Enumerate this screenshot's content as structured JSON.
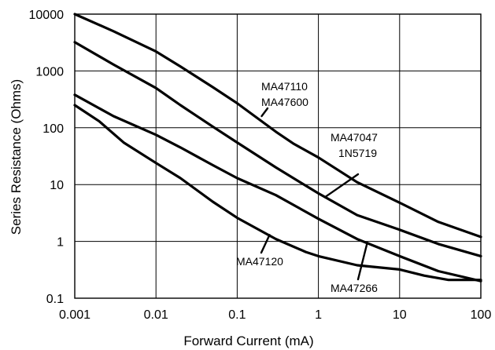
{
  "chart_data": {
    "type": "line",
    "title": "",
    "xlabel": "Forward Current (mA)",
    "ylabel": "Series Resistance (Ohms)",
    "x_scale": "log",
    "y_scale": "log",
    "xlim": [
      0.001,
      100
    ],
    "ylim": [
      0.1,
      10000
    ],
    "grid": true,
    "x_tick_labels": [
      "0.001",
      "0.01",
      "0.1",
      "1",
      "10",
      "100"
    ],
    "y_tick_labels": [
      "0.1",
      "1",
      "10",
      "100",
      "1000",
      "10000"
    ],
    "series": [
      {
        "name": "MA47110 MA47600",
        "points": [
          [
            0.001,
            10000
          ],
          [
            0.003,
            5000
          ],
          [
            0.01,
            2200
          ],
          [
            0.02,
            1200
          ],
          [
            0.05,
            520
          ],
          [
            0.1,
            270
          ],
          [
            0.3,
            85
          ],
          [
            0.5,
            52
          ],
          [
            1,
            30
          ],
          [
            3,
            11
          ],
          [
            10,
            4.8
          ],
          [
            30,
            2.2
          ],
          [
            100,
            1.2
          ]
        ]
      },
      {
        "name": "MA47047 1N5719",
        "points": [
          [
            0.001,
            3200
          ],
          [
            0.003,
            1300
          ],
          [
            0.01,
            500
          ],
          [
            0.02,
            250
          ],
          [
            0.05,
            105
          ],
          [
            0.1,
            55
          ],
          [
            0.3,
            20
          ],
          [
            1,
            7
          ],
          [
            3,
            2.9
          ],
          [
            10,
            1.6
          ],
          [
            30,
            0.9
          ],
          [
            100,
            0.55
          ]
        ]
      },
      {
        "name": "MA47266",
        "points": [
          [
            0.001,
            380
          ],
          [
            0.003,
            160
          ],
          [
            0.01,
            75
          ],
          [
            0.02,
            45
          ],
          [
            0.05,
            22
          ],
          [
            0.1,
            13
          ],
          [
            0.3,
            6.5
          ],
          [
            1,
            2.5
          ],
          [
            3,
            1.1
          ],
          [
            10,
            0.55
          ],
          [
            30,
            0.3
          ],
          [
            100,
            0.2
          ]
        ]
      },
      {
        "name": "MA47120",
        "points": [
          [
            0.001,
            250
          ],
          [
            0.002,
            130
          ],
          [
            0.004,
            55
          ],
          [
            0.01,
            24
          ],
          [
            0.02,
            13
          ],
          [
            0.05,
            5
          ],
          [
            0.1,
            2.6
          ],
          [
            0.3,
            1.1
          ],
          [
            0.7,
            0.65
          ],
          [
            1,
            0.55
          ],
          [
            3,
            0.38
          ],
          [
            10,
            0.32
          ],
          [
            20,
            0.25
          ],
          [
            40,
            0.21
          ],
          [
            100,
            0.21
          ]
        ]
      }
    ],
    "annotations": [
      {
        "lines": [
          "MA47110",
          "MA47600"
        ],
        "series": "MA47110 MA47600"
      },
      {
        "lines": [
          "MA47047",
          "1N5719"
        ],
        "series": "MA47047 1N5719"
      },
      {
        "lines": [
          "MA47120"
        ],
        "series": "MA47120"
      },
      {
        "lines": [
          "MA47266"
        ],
        "series": "MA47266"
      }
    ]
  }
}
